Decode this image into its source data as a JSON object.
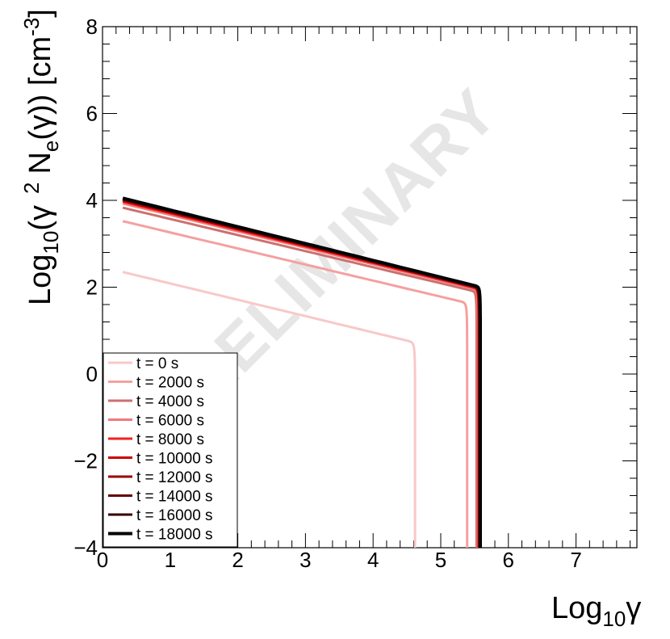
{
  "chart_data": {
    "type": "line",
    "xlabel_main": "Log",
    "xlabel_sub": "10",
    "xlabel_tail": "γ",
    "ylabel_main": "Log",
    "ylabel_sub": "10",
    "ylabel_part1": "(γ",
    "ylabel_sup2": "2",
    "ylabel_part2": "N",
    "ylabel_sub_e": "e",
    "ylabel_part3": "(γ)) [cm",
    "ylabel_sup3": "-3",
    "ylabel_close": "]",
    "watermark": "PRELIMINARY",
    "xlim": [
      0,
      7.9
    ],
    "ylim": [
      -4,
      8
    ],
    "x_ticks": [
      {
        "value": 0,
        "label": "0"
      },
      {
        "value": 1,
        "label": "1"
      },
      {
        "value": 2,
        "label": "2"
      },
      {
        "value": 3,
        "label": "3"
      },
      {
        "value": 4,
        "label": "4"
      },
      {
        "value": 5,
        "label": "5"
      },
      {
        "value": 6,
        "label": "6"
      },
      {
        "value": 7,
        "label": "7"
      }
    ],
    "y_ticks": [
      {
        "value": -4,
        "label": "−4"
      },
      {
        "value": -2,
        "label": "−2"
      },
      {
        "value": 0,
        "label": "0"
      },
      {
        "value": 2,
        "label": "2"
      },
      {
        "value": 4,
        "label": "4"
      },
      {
        "value": 6,
        "label": "6"
      },
      {
        "value": 8,
        "label": "8"
      }
    ],
    "grid": false,
    "legend_position": "bottom-left",
    "series": [
      {
        "name": "t = 0 s",
        "color": "#f8c8c8",
        "width": 3,
        "y_start": 2.35,
        "break_y": 0.8,
        "break_x": 4.42,
        "cutoff": 4.62
      },
      {
        "name": "t = 2000 s",
        "color": "#f4a0a0",
        "width": 3,
        "y_start": 3.52,
        "break_y": 1.7,
        "break_x": 5.22,
        "cutoff": 5.39
      },
      {
        "name": "t = 4000 s",
        "color": "#cc7070",
        "width": 3,
        "y_start": 3.83,
        "break_y": 1.95,
        "break_x": 5.38,
        "cutoff": 5.53
      },
      {
        "name": "t = 6000 s",
        "color": "#f07a7a",
        "width": 3,
        "y_start": 3.93,
        "break_y": 2.0,
        "break_x": 5.4,
        "cutoff": 5.55
      },
      {
        "name": "t = 8000 s",
        "color": "#ee2222",
        "width": 3,
        "y_start": 3.97,
        "break_y": 2.02,
        "break_x": 5.41,
        "cutoff": 5.56
      },
      {
        "name": "t = 10000 s",
        "color": "#cc0000",
        "width": 3,
        "y_start": 3.99,
        "break_y": 2.03,
        "break_x": 5.42,
        "cutoff": 5.565
      },
      {
        "name": "t = 12000 s",
        "color": "#9a0000",
        "width": 3,
        "y_start": 4.01,
        "break_y": 2.04,
        "break_x": 5.42,
        "cutoff": 5.57
      },
      {
        "name": "t = 14000 s",
        "color": "#660000",
        "width": 3,
        "y_start": 4.02,
        "break_y": 2.05,
        "break_x": 5.43,
        "cutoff": 5.575
      },
      {
        "name": "t = 16000 s",
        "color": "#330000",
        "width": 3,
        "y_start": 4.03,
        "break_y": 2.05,
        "break_x": 5.43,
        "cutoff": 5.58
      },
      {
        "name": "t = 18000 s",
        "color": "#000000",
        "width": 4,
        "y_start": 4.05,
        "break_y": 2.06,
        "break_x": 5.44,
        "cutoff": 5.585
      }
    ],
    "x_start": 0.3
  }
}
